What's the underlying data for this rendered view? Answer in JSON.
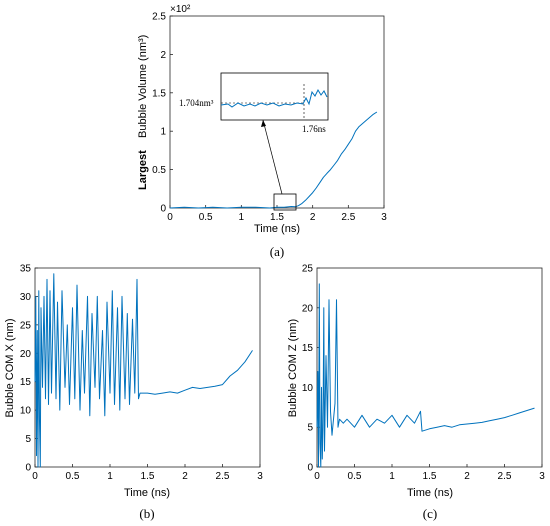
{
  "colors": {
    "series": "#0072BD",
    "axes": "#262626"
  },
  "chart_data": [
    {
      "id": "a",
      "panel_label": "(a)",
      "type": "line",
      "xlabel": "Time (ns)",
      "ylabel": "Bubble Volume (nm³)",
      "ylabel_prefix": "Largest",
      "y_exponent_label": "×10²",
      "xlim": [
        0,
        3
      ],
      "ylim": [
        0,
        2.5
      ],
      "xticks": [
        "0",
        "0.5",
        "1",
        "1.5",
        "2",
        "2.5",
        "3"
      ],
      "yticks": [
        "0",
        "0.5",
        "1",
        "1.5",
        "2",
        "2.5"
      ],
      "x": [
        0,
        0.2,
        0.4,
        0.6,
        0.8,
        1.0,
        1.2,
        1.4,
        1.5,
        1.6,
        1.7,
        1.76,
        1.8,
        1.85,
        1.9,
        1.95,
        2.0,
        2.05,
        2.1,
        2.15,
        2.2,
        2.25,
        2.3,
        2.35,
        2.4,
        2.45,
        2.5,
        2.55,
        2.6,
        2.65,
        2.7,
        2.75,
        2.8,
        2.85,
        2.9
      ],
      "y": [
        0.0,
        0.01,
        0.0,
        0.01,
        0.0,
        0.01,
        0.01,
        0.0,
        0.01,
        0.01,
        0.02,
        0.017,
        0.03,
        0.06,
        0.1,
        0.15,
        0.2,
        0.26,
        0.33,
        0.4,
        0.45,
        0.5,
        0.56,
        0.62,
        0.7,
        0.76,
        0.83,
        0.9,
        1.0,
        1.06,
        1.1,
        1.14,
        1.18,
        1.22,
        1.25
      ],
      "annotations": {
        "volume": "1.704nm³",
        "time": "1.76ns"
      }
    },
    {
      "id": "b",
      "panel_label": "(b)",
      "type": "line",
      "xlabel": "Time (ns)",
      "ylabel": "Bubble COM X (nm)",
      "xlim": [
        0,
        3
      ],
      "ylim": [
        0,
        35
      ],
      "xticks": [
        "0",
        "0.5",
        "1",
        "1.5",
        "2",
        "2.5",
        "3"
      ],
      "yticks": [
        "0",
        "5",
        "10",
        "15",
        "20",
        "25",
        "30",
        "35"
      ],
      "x": [
        0,
        0.01,
        0.02,
        0.03,
        0.04,
        0.05,
        0.06,
        0.07,
        0.08,
        0.1,
        0.12,
        0.14,
        0.16,
        0.18,
        0.2,
        0.22,
        0.25,
        0.28,
        0.3,
        0.33,
        0.36,
        0.4,
        0.43,
        0.46,
        0.5,
        0.53,
        0.56,
        0.6,
        0.63,
        0.66,
        0.7,
        0.73,
        0.76,
        0.8,
        0.83,
        0.86,
        0.9,
        0.93,
        0.96,
        1.0,
        1.03,
        1.06,
        1.1,
        1.13,
        1.16,
        1.2,
        1.23,
        1.26,
        1.3,
        1.33,
        1.36,
        1.38,
        1.4,
        1.45,
        1.5,
        1.6,
        1.7,
        1.8,
        1.9,
        2.0,
        2.1,
        2.2,
        2.3,
        2.4,
        2.5,
        2.6,
        2.7,
        2.8,
        2.9
      ],
      "y": [
        15,
        30,
        2,
        24,
        0,
        31,
        8,
        0,
        28,
        14,
        30,
        12,
        33,
        11,
        31,
        13,
        34,
        12,
        29,
        10,
        31,
        14,
        25,
        11,
        28,
        12,
        32,
        10,
        24,
        13,
        30,
        9,
        27,
        14,
        30,
        12,
        24,
        9,
        29,
        13,
        31,
        11,
        28,
        10,
        30,
        12,
        27,
        11,
        26,
        13,
        33,
        12,
        13,
        13,
        13,
        12.8,
        13,
        13.2,
        13,
        13.5,
        14,
        13.8,
        14,
        14.2,
        14.5,
        16,
        17,
        18.5,
        20.5
      ]
    },
    {
      "id": "c",
      "panel_label": "(c)",
      "type": "line",
      "xlabel": "Time (ns)",
      "ylabel": "Bubble COM Z (nm)",
      "xlim": [
        0,
        3
      ],
      "ylim": [
        0,
        25
      ],
      "xticks": [
        "0",
        "0.5",
        "1",
        "1.5",
        "2",
        "2.5",
        "3"
      ],
      "yticks": [
        "0",
        "5",
        "10",
        "15",
        "20",
        "25"
      ],
      "x": [
        0,
        0.01,
        0.02,
        0.03,
        0.04,
        0.05,
        0.06,
        0.07,
        0.08,
        0.09,
        0.1,
        0.12,
        0.14,
        0.16,
        0.18,
        0.2,
        0.22,
        0.24,
        0.26,
        0.28,
        0.3,
        0.35,
        0.4,
        0.5,
        0.6,
        0.7,
        0.8,
        0.9,
        1.0,
        1.1,
        1.2,
        1.3,
        1.38,
        1.4,
        1.5,
        1.6,
        1.7,
        1.8,
        1.9,
        2.0,
        2.1,
        2.2,
        2.3,
        2.4,
        2.5,
        2.6,
        2.7,
        2.8,
        2.9
      ],
      "y": [
        5,
        12,
        0,
        23,
        3,
        0,
        10,
        1,
        5,
        20,
        2,
        14,
        5,
        21,
        7,
        4,
        6,
        8,
        21,
        5,
        6,
        5.5,
        6,
        5,
        6.5,
        5,
        6,
        5.5,
        6.5,
        5,
        6.5,
        5.5,
        7,
        4.5,
        4.8,
        5,
        5.2,
        5,
        5.3,
        5.4,
        5.5,
        5.6,
        5.8,
        6,
        6.2,
        6.5,
        6.8,
        7.1,
        7.4
      ]
    }
  ]
}
